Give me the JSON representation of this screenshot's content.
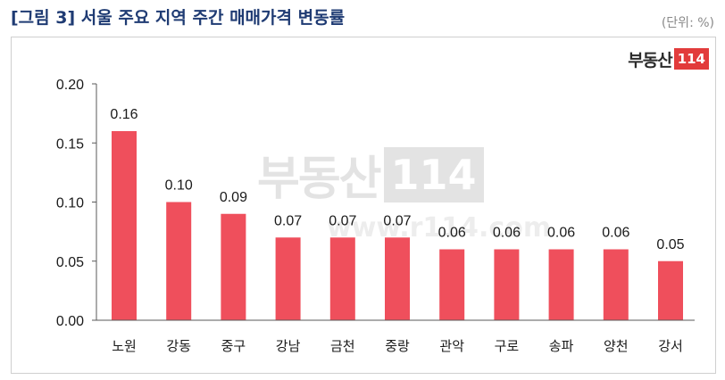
{
  "header": {
    "title": "[그림 3] 서울 주요 지역 주간 매매가격 변동률",
    "unit": "(단위: %)"
  },
  "logo": {
    "text": "부동산",
    "number": "114"
  },
  "watermark": {
    "text": "부동산",
    "number": "114",
    "url": "www.r114.com"
  },
  "colors": {
    "bar": "#ef4f5c",
    "axis": "#595959",
    "title": "#1f3b73",
    "logo_accent": "#e23b3b"
  },
  "chart_data": {
    "type": "bar",
    "title": "[그림 3] 서울 주요 지역 주간 매매가격 변동률",
    "xlabel": "",
    "ylabel": "",
    "unit": "(단위: %)",
    "categories": [
      "노원",
      "강동",
      "중구",
      "강남",
      "금천",
      "중랑",
      "관악",
      "구로",
      "송파",
      "양천",
      "강서"
    ],
    "values": [
      0.16,
      0.1,
      0.09,
      0.07,
      0.07,
      0.07,
      0.06,
      0.06,
      0.06,
      0.06,
      0.05
    ],
    "value_labels": [
      "0.16",
      "0.10",
      "0.09",
      "0.07",
      "0.07",
      "0.07",
      "0.06",
      "0.06",
      "0.06",
      "0.06",
      "0.05"
    ],
    "ylim": [
      0,
      0.2
    ],
    "yticks": [
      0.0,
      0.05,
      0.1,
      0.15,
      0.2
    ],
    "ytick_labels": [
      "0.00",
      "0.05",
      "0.10",
      "0.15",
      "0.20"
    ],
    "grid": false,
    "legend": "none"
  }
}
